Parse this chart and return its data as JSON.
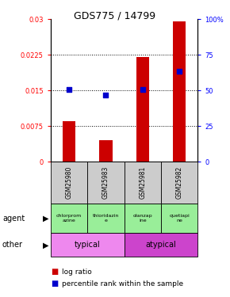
{
  "title": "GDS775 / 14799",
  "samples": [
    "GSM25980",
    "GSM25983",
    "GSM25981",
    "GSM25982"
  ],
  "log_ratios": [
    0.0085,
    0.0045,
    0.022,
    0.0295
  ],
  "percentile_ranks": [
    50.5,
    47.0,
    50.5,
    63.5
  ],
  "ylim_left": [
    0,
    0.03
  ],
  "ylim_right": [
    0,
    100
  ],
  "yticks_left": [
    0,
    0.0075,
    0.015,
    0.0225,
    0.03
  ],
  "ytick_labels_left": [
    "0",
    "0.0075",
    "0.015",
    "0.0225",
    "0.03"
  ],
  "yticks_right": [
    0,
    25,
    50,
    75,
    100
  ],
  "ytick_labels_right": [
    "0",
    "25",
    "50",
    "75",
    "100%"
  ],
  "bar_color": "#cc0000",
  "point_color": "#0000cc",
  "agent_labels": [
    "chlorprom\nazine",
    "thioridazin\ne",
    "olanzap\nine",
    "quetiapi\nne"
  ],
  "agent_bg": "#99ee99",
  "sample_bg": "#cccccc",
  "typical_color": "#ee88ee",
  "atypical_color": "#cc44cc"
}
